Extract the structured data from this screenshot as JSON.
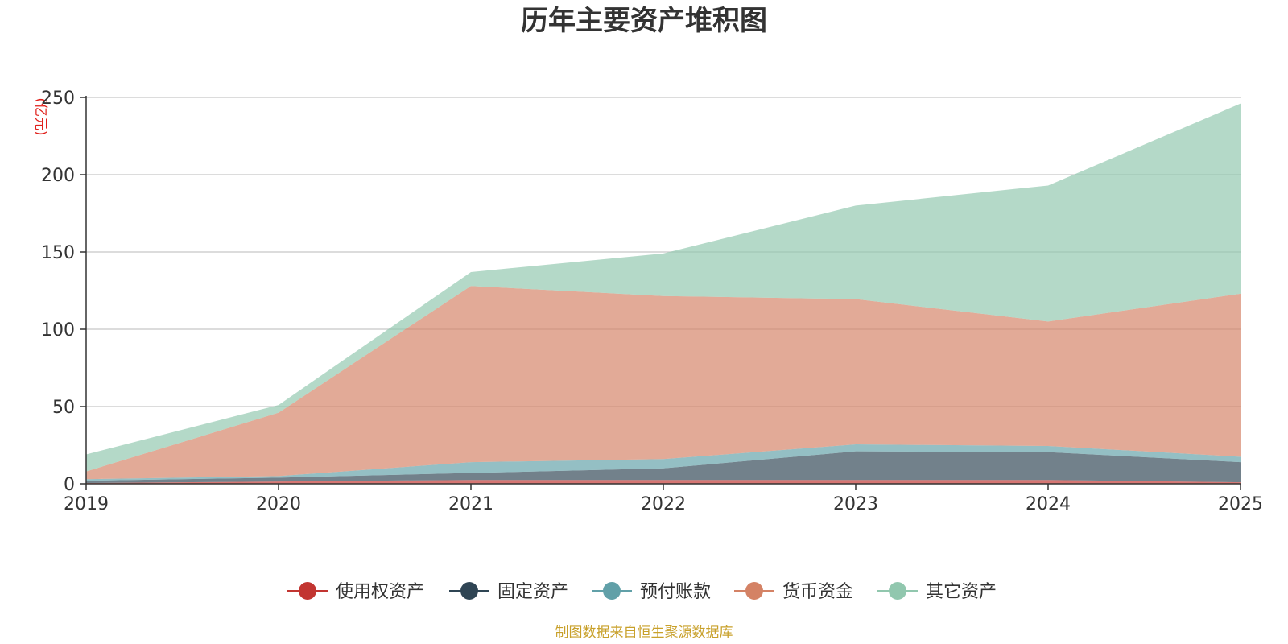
{
  "chart_data": {
    "type": "area",
    "stacked": true,
    "title": "历年主要资产堆积图",
    "unit": "(亿元)",
    "categories": [
      "2019",
      "2020",
      "2021",
      "2022",
      "2023",
      "2024",
      "2025"
    ],
    "ylim": [
      0,
      250
    ],
    "yticks": [
      0,
      50,
      100,
      150,
      200,
      250
    ],
    "grid": true,
    "legend_position": "bottom",
    "series": [
      {
        "name": "使用权资产",
        "color": "#c23531",
        "values": [
          0.5,
          1.5,
          2.5,
          2.5,
          2.5,
          2.5,
          1.0
        ]
      },
      {
        "name": "固定资产",
        "color": "#2f4554",
        "values": [
          1.5,
          2.5,
          4.5,
          7.5,
          18.5,
          18.0,
          13.0
        ]
      },
      {
        "name": "预付账款",
        "color": "#61a0a8",
        "values": [
          1.0,
          1.0,
          7.0,
          6.0,
          4.5,
          4.0,
          3.5
        ]
      },
      {
        "name": "货币资金",
        "color": "#d48265",
        "values": [
          5.0,
          41.0,
          114.0,
          105.5,
          94.0,
          80.5,
          105.5
        ]
      },
      {
        "name": "其它资产",
        "color": "#91c7ae",
        "values": [
          11.0,
          5.0,
          9.0,
          27.5,
          60.5,
          88.0,
          123.0
        ]
      }
    ],
    "source": "制图数据来自恒生聚源数据库"
  }
}
